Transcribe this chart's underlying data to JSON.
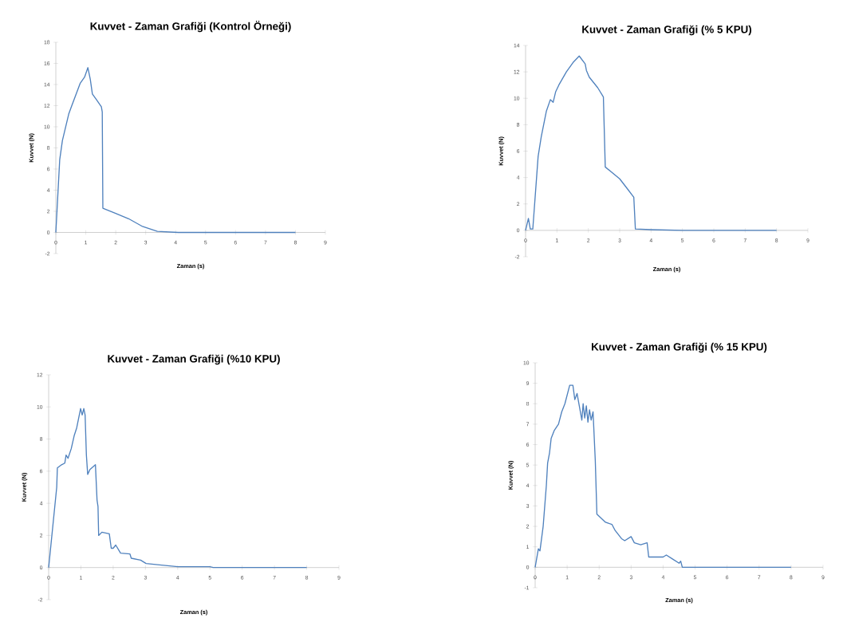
{
  "chart_data": [
    {
      "type": "line",
      "title": "Kuvvet - Zaman Grafiği (Kontrol Örneği)",
      "xlabel": "Zaman (s)",
      "ylabel": "Kuvvet (N)",
      "xlim": [
        0,
        9
      ],
      "ylim": [
        -2,
        18
      ],
      "xticks": [
        0,
        1,
        2,
        3,
        4,
        5,
        6,
        7,
        8,
        9
      ],
      "yticks": [
        -2,
        0,
        2,
        4,
        6,
        8,
        10,
        12,
        14,
        16,
        18
      ],
      "series": [
        {
          "color": "#4f81bd",
          "x": [
            0,
            0.13,
            0.22,
            0.43,
            0.52,
            0.81,
            0.96,
            1.07,
            1.15,
            1.22,
            1.35,
            1.52,
            1.55,
            1.57,
            2.0,
            2.43,
            2.87,
            3.39,
            4.09,
            5,
            6,
            7,
            8
          ],
          "values": [
            0,
            6.9,
            8.7,
            11.2,
            11.9,
            14.1,
            14.7,
            15.6,
            14.5,
            13.1,
            12.6,
            11.9,
            11.4,
            2.3,
            1.8,
            1.3,
            0.6,
            0.1,
            0,
            0,
            0,
            0,
            0
          ]
        }
      ]
    },
    {
      "type": "line",
      "title": "Kuvvet - Zaman Grafiği (% 5 KPU)",
      "xlabel": "Zaman (s)",
      "ylabel": "Kuvvet (N)",
      "xlim": [
        0,
        9
      ],
      "ylim": [
        -2,
        14
      ],
      "xticks": [
        0,
        1,
        2,
        3,
        4,
        5,
        6,
        7,
        8,
        9
      ],
      "yticks": [
        -2,
        0,
        2,
        4,
        6,
        8,
        10,
        12,
        14
      ],
      "series": [
        {
          "color": "#4f81bd",
          "x": [
            0,
            0.09,
            0.15,
            0.23,
            0.4,
            0.5,
            0.66,
            0.79,
            0.88,
            0.96,
            1.06,
            1.3,
            1.51,
            1.71,
            1.9,
            1.94,
            2.03,
            2.3,
            2.48,
            2.54,
            3.0,
            3.26,
            3.45,
            3.5,
            4.0,
            5,
            6,
            7,
            8
          ],
          "values": [
            0,
            0.9,
            0.1,
            0.1,
            5.6,
            7.1,
            9.0,
            9.9,
            9.7,
            10.5,
            11.0,
            12.0,
            12.7,
            13.2,
            12.6,
            12.1,
            11.6,
            10.8,
            10.1,
            4.8,
            3.9,
            3.1,
            2.5,
            0.1,
            0.05,
            0,
            0,
            0,
            0
          ]
        }
      ]
    },
    {
      "type": "line",
      "title": "Kuvvet - Zaman Grafiği (%10 KPU)",
      "xlabel": "Zaman (s)",
      "ylabel": "Kuvvet (N)",
      "xlim": [
        0,
        9
      ],
      "ylim": [
        -2,
        12
      ],
      "xticks": [
        0,
        1,
        2,
        3,
        4,
        5,
        6,
        7,
        8,
        9
      ],
      "yticks": [
        -2,
        0,
        2,
        4,
        6,
        8,
        10,
        12
      ],
      "series": [
        {
          "color": "#4f81bd",
          "x": [
            0,
            0.25,
            0.27,
            0.4,
            0.5,
            0.54,
            0.6,
            0.7,
            0.79,
            0.87,
            0.99,
            1.04,
            1.09,
            1.13,
            1.17,
            1.21,
            1.28,
            1.45,
            1.5,
            1.53,
            1.55,
            1.65,
            1.88,
            1.94,
            2.0,
            2.08,
            2.23,
            2.52,
            2.56,
            2.85,
            3.02,
            3.5,
            4.0,
            5.0,
            5.1,
            6,
            7,
            8
          ],
          "values": [
            0,
            5.0,
            6.2,
            6.4,
            6.5,
            7.0,
            6.8,
            7.4,
            8.2,
            8.7,
            9.9,
            9.5,
            9.9,
            9.5,
            7.0,
            5.8,
            6.1,
            6.4,
            4.2,
            3.8,
            2.0,
            2.2,
            2.1,
            1.2,
            1.2,
            1.4,
            0.9,
            0.85,
            0.58,
            0.46,
            0.25,
            0.15,
            0.05,
            0.05,
            0,
            0,
            0,
            0
          ]
        }
      ]
    },
    {
      "type": "line",
      "title": "Kuvvet - Zaman Grafiği (% 15 KPU)",
      "xlabel": "Zaman (s)",
      "ylabel": "Kuvvet (N)",
      "xlim": [
        0,
        9
      ],
      "ylim": [
        -1,
        10
      ],
      "xticks": [
        0,
        1,
        2,
        3,
        4,
        5,
        6,
        7,
        8,
        9
      ],
      "yticks": [
        -1,
        0,
        1,
        2,
        3,
        4,
        5,
        6,
        7,
        8,
        9,
        10
      ],
      "series": [
        {
          "color": "#4f81bd",
          "x": [
            0,
            0.1,
            0.15,
            0.25,
            0.35,
            0.39,
            0.45,
            0.5,
            0.6,
            0.73,
            0.83,
            0.93,
            1.08,
            1.18,
            1.24,
            1.31,
            1.46,
            1.5,
            1.55,
            1.6,
            1.65,
            1.7,
            1.75,
            1.81,
            1.88,
            1.93,
            2.2,
            2.4,
            2.5,
            2.7,
            2.8,
            3.0,
            3.1,
            3.3,
            3.5,
            3.55,
            4.0,
            4.1,
            4.3,
            4.5,
            4.55,
            4.6,
            5,
            6,
            7,
            8
          ],
          "values": [
            0,
            0.9,
            0.8,
            2.0,
            4.0,
            5.1,
            5.6,
            6.3,
            6.7,
            7.0,
            7.6,
            8.0,
            8.9,
            8.9,
            8.2,
            8.5,
            7.2,
            8.0,
            7.3,
            7.9,
            7.1,
            7.7,
            7.2,
            7.6,
            5.2,
            2.6,
            2.2,
            2.1,
            1.8,
            1.4,
            1.3,
            1.5,
            1.2,
            1.1,
            1.2,
            0.5,
            0.5,
            0.6,
            0.4,
            0.2,
            0.3,
            0,
            0,
            0,
            0,
            0
          ]
        }
      ]
    }
  ]
}
